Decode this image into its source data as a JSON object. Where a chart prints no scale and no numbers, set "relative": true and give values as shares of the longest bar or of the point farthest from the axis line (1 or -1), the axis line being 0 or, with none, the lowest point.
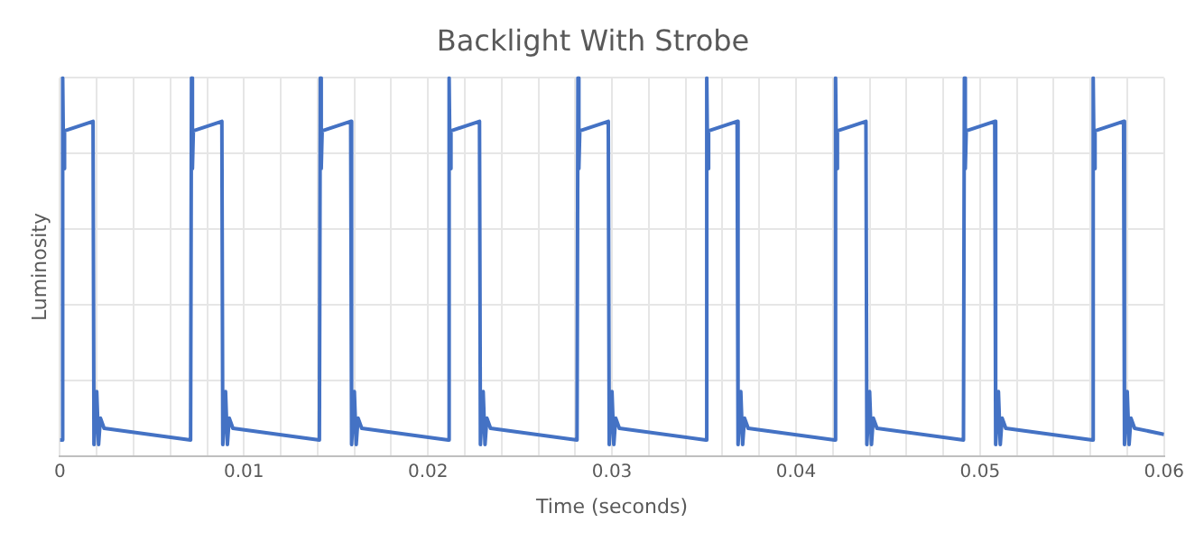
{
  "chart_data": {
    "type": "line",
    "title": "Backlight With Strobe",
    "xlabel": "Time (seconds)",
    "ylabel": "Luminosity",
    "relative": true,
    "grid": true,
    "marker": "none",
    "line_style": "solid",
    "xlim": [
      0,
      0.06
    ],
    "xticks": [
      0,
      {
        "value": 0.002,
        "label": null
      },
      {
        "value": 0.004,
        "label": null
      },
      {
        "value": 0.006,
        "label": null
      },
      {
        "value": 0.008,
        "label": null
      },
      0.01,
      {
        "value": 0.012,
        "label": null
      },
      {
        "value": 0.014,
        "label": null
      },
      {
        "value": 0.016,
        "label": null
      },
      {
        "value": 0.018,
        "label": null
      },
      0.02,
      {
        "value": 0.022,
        "label": null
      },
      {
        "value": 0.024,
        "label": null
      },
      {
        "value": 0.026,
        "label": null
      },
      {
        "value": 0.028,
        "label": null
      },
      0.03,
      {
        "value": 0.032,
        "label": null
      },
      {
        "value": 0.034,
        "label": null
      },
      {
        "value": 0.036,
        "label": null
      },
      {
        "value": 0.038,
        "label": null
      },
      0.04,
      {
        "value": 0.042,
        "label": null
      },
      {
        "value": 0.044,
        "label": null
      },
      {
        "value": 0.046,
        "label": null
      },
      {
        "value": 0.048,
        "label": null
      },
      0.05,
      {
        "value": 0.052,
        "label": null
      },
      {
        "value": 0.054,
        "label": null
      },
      {
        "value": 0.056,
        "label": null
      },
      {
        "value": 0.058,
        "label": null
      },
      0.06
    ],
    "series": [
      {
        "color": "#4472c4",
        "x": [
          0,
          0.0001,
          0.00015,
          0.0002,
          0.00025,
          0.0018,
          0.00185,
          0.002,
          0.0021,
          0.0022,
          0.0024,
          0.0071,
          0.00715,
          0.0072,
          0.00725,
          0.0088,
          0.00885,
          0.009,
          0.0091,
          0.0092,
          0.0094,
          0.0141,
          0.01415,
          0.0142,
          0.01425,
          0.0158,
          0.01585,
          0.016,
          0.0161,
          0.0162,
          0.0164,
          0.0211,
          0.02115,
          0.0212,
          0.02125,
          0.0228,
          0.02285,
          0.023,
          0.0231,
          0.0232,
          0.0234,
          0.0281,
          0.02815,
          0.0282,
          0.02825,
          0.0298,
          0.02985,
          0.03,
          0.0301,
          0.0302,
          0.0304,
          0.0351,
          0.03515,
          0.0352,
          0.03525,
          0.0368,
          0.03685,
          0.037,
          0.0371,
          0.0372,
          0.0374,
          0.0421,
          0.04215,
          0.0422,
          0.04225,
          0.0438,
          0.04385,
          0.044,
          0.0441,
          0.0442,
          0.0444,
          0.0491,
          0.04915,
          0.0492,
          0.04925,
          0.0508,
          0.05085,
          0.051,
          0.0511,
          0.0512,
          0.0514,
          0.0561,
          0.05615,
          0.0562,
          0.05625,
          0.0578,
          0.05785,
          0.058,
          0.0581,
          0.0582,
          0.0584,
          0.06
        ],
        "values": [
          0.042,
          0.042,
          1,
          0.76,
          0.86,
          0.885,
          0.03,
          0.17,
          0.03,
          0.1,
          0.073,
          0.042,
          1,
          0.76,
          0.86,
          0.885,
          0.03,
          0.17,
          0.03,
          0.1,
          0.073,
          0.042,
          1,
          0.76,
          0.86,
          0.885,
          0.03,
          0.17,
          0.03,
          0.1,
          0.073,
          0.042,
          1,
          0.76,
          0.86,
          0.885,
          0.03,
          0.17,
          0.03,
          0.1,
          0.073,
          0.042,
          1,
          0.76,
          0.86,
          0.885,
          0.03,
          0.17,
          0.03,
          0.1,
          0.073,
          0.042,
          1,
          0.76,
          0.86,
          0.885,
          0.03,
          0.17,
          0.03,
          0.1,
          0.073,
          0.042,
          1,
          0.76,
          0.86,
          0.885,
          0.03,
          0.17,
          0.03,
          0.1,
          0.073,
          0.042,
          1,
          0.76,
          0.86,
          0.885,
          0.03,
          0.17,
          0.03,
          0.1,
          0.073,
          0.042,
          1,
          0.76,
          0.86,
          0.885,
          0.03,
          0.17,
          0.03,
          0.1,
          0.073,
          0.057
        ]
      }
    ]
  }
}
